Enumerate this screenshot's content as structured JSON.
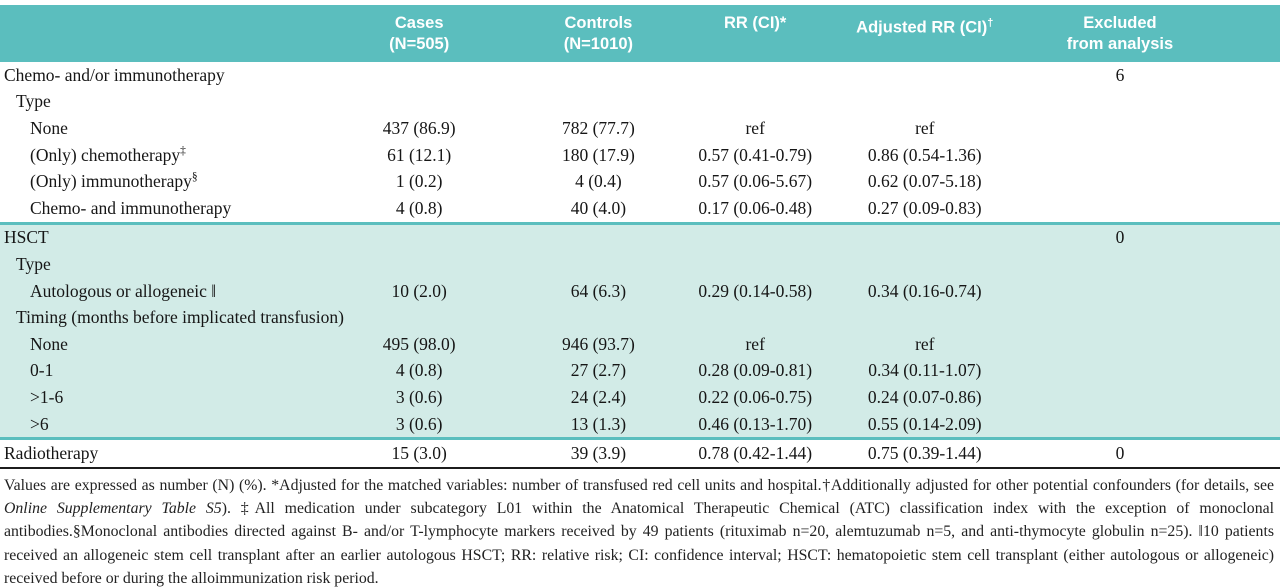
{
  "colors": {
    "header_teal": "#5bbebe",
    "section_teal": "#d2ebe7"
  },
  "table": {
    "header": {
      "cases_l1": "Cases",
      "cases_l2": "(N=505)",
      "controls_l1": "Controls",
      "controls_l2": "(N=1010)",
      "rr": "RR (CI)*",
      "arr": "Adjusted RR (CI)",
      "arr_sup": "†",
      "excl_l1": "Excluded",
      "excl_l2": "from analysis"
    },
    "chemo": {
      "title": "Chemo- and/or immunotherapy",
      "title_excluded": "6",
      "type_label": "Type",
      "rows": [
        {
          "label": "None",
          "cases": "437 (86.9)",
          "controls": "782 (77.7)",
          "rr": "ref",
          "arr": "ref"
        },
        {
          "label": "(Only) chemotherapy",
          "sup": "‡",
          "cases": "61 (12.1)",
          "controls": "180 (17.9)",
          "rr": "0.57 (0.41-0.79)",
          "arr": "0.86 (0.54-1.36)"
        },
        {
          "label": "(Only) immunotherapy",
          "sup": "§",
          "cases": "1 (0.2)",
          "controls": "4 (0.4)",
          "rr": "0.57 (0.06-5.67)",
          "arr": "0.62 (0.07-5.18)"
        },
        {
          "label": "Chemo- and immunotherapy",
          "cases": "4 (0.8)",
          "controls": "40 (4.0)",
          "rr": "0.17 (0.06-0.48)",
          "arr": "0.27 (0.09-0.83)"
        }
      ]
    },
    "hsct": {
      "title": "HSCT",
      "title_excluded": "0",
      "type_label": "Type",
      "type_rows": [
        {
          "label": "Autologous or allogeneic ‖",
          "cases": "10 (2.0)",
          "controls": "64 (6.3)",
          "rr": "0.29 (0.14-0.58)",
          "arr": "0.34 (0.16-0.74)"
        }
      ],
      "timing_label": "Timing (months before implicated transfusion)",
      "timing_rows": [
        {
          "label": "None",
          "cases": "495 (98.0)",
          "controls": "946 (93.7)",
          "rr": "ref",
          "arr": "ref"
        },
        {
          "label": "0-1",
          "cases": "4 (0.8)",
          "controls": "27 (2.7)",
          "rr": "0.28 (0.09-0.81)",
          "arr": "0.34 (0.11-1.07)"
        },
        {
          "label": ">1-6",
          "cases": "3 (0.6)",
          "controls": "24 (2.4)",
          "rr": "0.22 (0.06-0.75)",
          "arr": "0.24 (0.07-0.86)"
        },
        {
          "label": ">6",
          "cases": "3 (0.6)",
          "controls": "13 (1.3)",
          "rr": "0.46 (0.13-1.70)",
          "arr": "0.55 (0.14-2.09)"
        }
      ]
    },
    "radio": {
      "label": "Radiotherapy",
      "cases": "15 (3.0)",
      "controls": "39 (3.9)",
      "rr": "0.78 (0.42-1.44)",
      "arr": "0.75 (0.39-1.44)",
      "excluded": "0"
    }
  },
  "footnote": {
    "part1": "Values are expressed as number (N) (%). *Adjusted for the matched variables: number of transfused red cell units and hospital.†Additionally adjusted for other potential confounders (for details, see ",
    "italic": "Online Supplementary Table S5",
    "part2": "). ‡All medication under subcategory L01 within the Anatomical Therapeutic Chemical (ATC) classification index with the exception of monoclonal antibodies.§Monoclonal antibodies directed against B- and/or T-lymphocyte markers received by 49 patients (rituximab n=20, alemtuzumab n=5, and anti-thymocyte globulin n=25). ‖10 patients received an allogeneic stem cell transplant after an earlier autologous HSCT; RR: relative risk; CI: confidence interval;  HSCT: hematopoietic stem cell transplant (either autologous or allogeneic) received before or during the alloimmunization risk period."
  }
}
